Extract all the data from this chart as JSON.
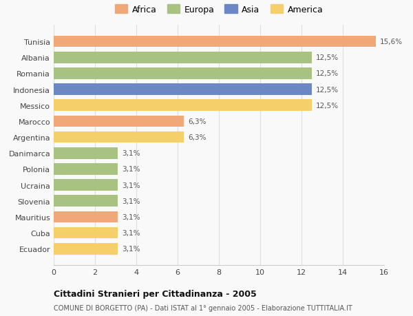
{
  "categories": [
    "Ecuador",
    "Cuba",
    "Mauritius",
    "Slovenia",
    "Ucraina",
    "Polonia",
    "Danimarca",
    "Argentina",
    "Marocco",
    "Messico",
    "Indonesia",
    "Romania",
    "Albania",
    "Tunisia"
  ],
  "values": [
    3.1,
    3.1,
    3.1,
    3.1,
    3.1,
    3.1,
    3.1,
    6.3,
    6.3,
    12.5,
    12.5,
    12.5,
    12.5,
    15.6
  ],
  "colors": [
    "#f5d06a",
    "#f5d06a",
    "#f0a878",
    "#a8c282",
    "#a8c282",
    "#a8c282",
    "#a8c282",
    "#f5d06a",
    "#f0a878",
    "#f5d06a",
    "#6b88c4",
    "#a8c282",
    "#a8c282",
    "#f0a878"
  ],
  "labels": [
    "3,1%",
    "3,1%",
    "3,1%",
    "3,1%",
    "3,1%",
    "3,1%",
    "3,1%",
    "6,3%",
    "6,3%",
    "12,5%",
    "12,5%",
    "12,5%",
    "12,5%",
    "15,6%"
  ],
  "legend_labels": [
    "Africa",
    "Europa",
    "Asia",
    "America"
  ],
  "legend_colors": [
    "#f0a878",
    "#a8c282",
    "#6b88c4",
    "#f5d06a"
  ],
  "title": "Cittadini Stranieri per Cittadinanza - 2005",
  "subtitle": "COMUNE DI BORGETTO (PA) - Dati ISTAT al 1° gennaio 2005 - Elaborazione TUTTITALIA.IT",
  "xlim": [
    0,
    16
  ],
  "xticks": [
    0,
    2,
    4,
    6,
    8,
    10,
    12,
    14,
    16
  ],
  "bg_color": "#f9f9f9",
  "grid_color": "#dddddd",
  "bar_height": 0.72
}
